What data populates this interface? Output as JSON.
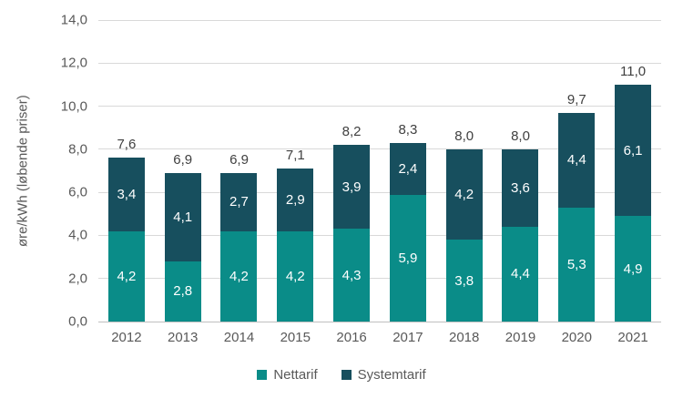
{
  "chart_data": {
    "type": "bar",
    "stacked": true,
    "title": "",
    "xlabel": "",
    "ylabel": "øre/kWh (løbende priser)",
    "ylim": [
      0,
      14
    ],
    "ytick_step": 2,
    "ytick_labels": [
      "0,0",
      "2,0",
      "4,0",
      "6,0",
      "8,0",
      "10,0",
      "12,0",
      "14,0"
    ],
    "grid": true,
    "legend_position": "bottom",
    "categories": [
      "2012",
      "2013",
      "2014",
      "2015",
      "2016",
      "2017",
      "2018",
      "2019",
      "2020",
      "2021"
    ],
    "series": [
      {
        "name": "Nettarif",
        "color": "#0A8C88",
        "values": [
          4.2,
          2.8,
          4.2,
          4.2,
          4.3,
          5.9,
          3.8,
          4.4,
          5.3,
          4.9
        ],
        "labels": [
          "4,2",
          "2,8",
          "4,2",
          "4,2",
          "4,3",
          "5,9",
          "3,8",
          "4,4",
          "5,3",
          "4,9"
        ]
      },
      {
        "name": "Systemtarif",
        "color": "#174F5E",
        "values": [
          3.4,
          4.1,
          2.7,
          2.9,
          3.9,
          2.4,
          4.2,
          3.6,
          4.4,
          6.1
        ],
        "labels": [
          "3,4",
          "4,1",
          "2,7",
          "2,9",
          "3,9",
          "2,4",
          "4,2",
          "3,6",
          "4,4",
          "6,1"
        ]
      }
    ],
    "totals": [
      7.6,
      6.9,
      6.9,
      7.1,
      8.2,
      8.3,
      8.0,
      8.0,
      9.7,
      11.0
    ],
    "total_labels": [
      "7,6",
      "6,9",
      "6,9",
      "7,1",
      "8,2",
      "8,3",
      "8,0",
      "8,0",
      "9,7",
      "11,0"
    ]
  },
  "colors": {
    "gridline": "#D9D9D9",
    "axis_line": "#BFBFBF",
    "tick_text": "#595959",
    "total_text": "#404040",
    "bar_value_text": "#FFFFFF"
  }
}
